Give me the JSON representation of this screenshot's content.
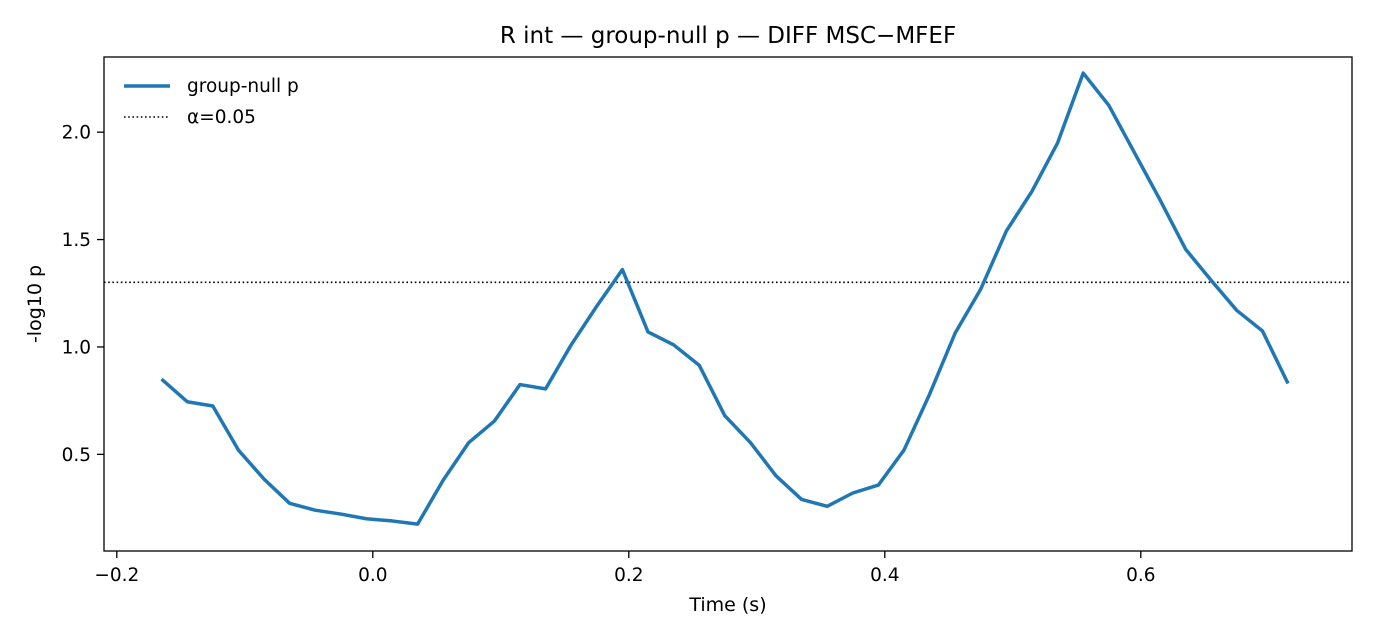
{
  "chart_data": {
    "type": "line",
    "title": "R int — group-null p — DIFF MSC−MFEF",
    "xlabel": "Time (s)",
    "ylabel": "-log10 p",
    "xlim": [
      -0.21,
      0.765
    ],
    "ylim": [
      0.05,
      2.35
    ],
    "xticks": [
      -0.2,
      0.0,
      0.2,
      0.4,
      0.6
    ],
    "xtick_labels": [
      "−0.2",
      "0.0",
      "0.2",
      "0.4",
      "0.6"
    ],
    "yticks": [
      0.5,
      1.0,
      1.5,
      2.0
    ],
    "ytick_labels": [
      "0.5",
      "1.0",
      "1.5",
      "2.0"
    ],
    "grid": false,
    "legend_position": "top-left",
    "series": [
      {
        "name": "group-null p",
        "color": "#1f77b4",
        "style": "solid",
        "x": [
          -0.165,
          -0.145,
          -0.125,
          -0.105,
          -0.085,
          -0.065,
          -0.045,
          -0.025,
          -0.005,
          0.015,
          0.035,
          0.055,
          0.075,
          0.095,
          0.115,
          0.135,
          0.155,
          0.175,
          0.195,
          0.215,
          0.235,
          0.255,
          0.275,
          0.295,
          0.315,
          0.335,
          0.355,
          0.375,
          0.395,
          0.415,
          0.435,
          0.455,
          0.475,
          0.495,
          0.515,
          0.535,
          0.555,
          0.575,
          0.595,
          0.615,
          0.635,
          0.655,
          0.675,
          0.695,
          0.715
        ],
        "y": [
          0.85,
          0.745,
          0.725,
          0.52,
          0.385,
          0.272,
          0.24,
          0.222,
          0.2,
          0.19,
          0.175,
          0.38,
          0.555,
          0.655,
          0.825,
          0.805,
          1.01,
          1.19,
          1.36,
          1.07,
          1.01,
          0.915,
          0.68,
          0.555,
          0.4,
          0.29,
          0.258,
          0.32,
          0.357,
          0.52,
          0.78,
          1.065,
          1.27,
          1.54,
          1.725,
          1.95,
          2.275,
          2.125,
          1.905,
          1.685,
          1.455,
          1.31,
          1.17,
          1.075,
          0.83
        ]
      },
      {
        "name": "α=0.05",
        "color": "#000000",
        "style": "dotted",
        "y_constant": 1.301
      }
    ]
  }
}
